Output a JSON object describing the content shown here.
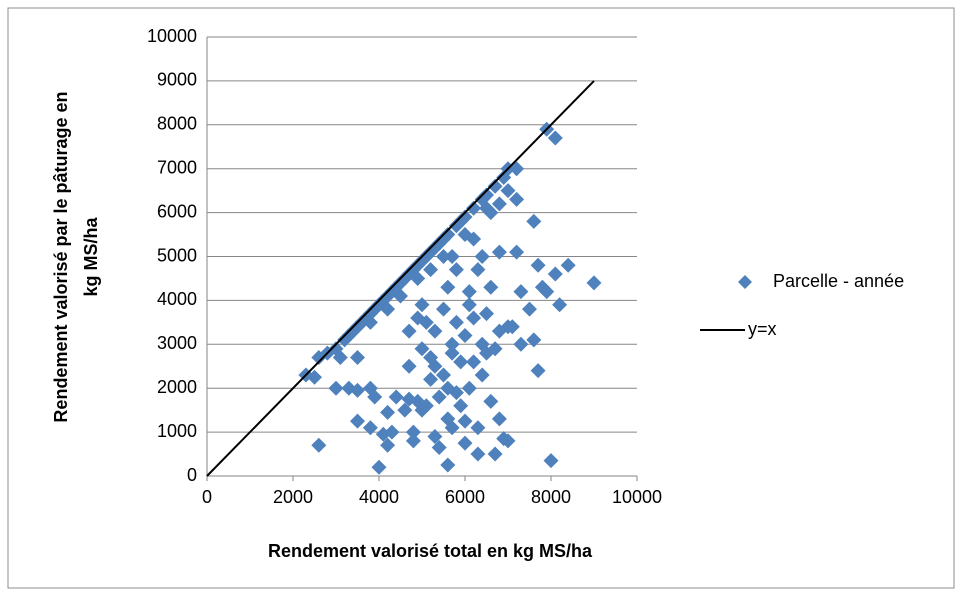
{
  "chart_data": {
    "type": "scatter",
    "xlabel": "Rendement valorisé total en kg MS/ha",
    "ylabel": [
      "Rendement valorisé par le pâturage en",
      "kg MS/ha"
    ],
    "xlim": [
      0,
      10000
    ],
    "xticks": [
      0,
      2000,
      4000,
      6000,
      8000,
      10000
    ],
    "ylim": [
      0,
      10000
    ],
    "yticks": [
      0,
      1000,
      2000,
      3000,
      4000,
      5000,
      6000,
      7000,
      8000,
      9000,
      10000
    ],
    "grid": true,
    "legend": "right",
    "series": [
      {
        "name": "Parcelle - année",
        "color": "#4f81bd",
        "marker": "diamond",
        "x": [
          2300,
          2500,
          2600,
          2800,
          3000,
          3100,
          3200,
          3300,
          3400,
          3500,
          3600,
          3700,
          3800,
          3900,
          4000,
          4100,
          4200,
          4300,
          4400,
          4500,
          4600,
          4700,
          4800,
          4900,
          5000,
          5100,
          5200,
          5300,
          5400,
          5500,
          5600,
          5800,
          5900,
          6000,
          6200,
          6400,
          6500,
          6700,
          6900,
          7000,
          7200,
          7900,
          8100,
          3500,
          3800,
          4200,
          4500,
          4900,
          5200,
          5500,
          5700,
          6000,
          6200,
          6600,
          6800,
          7000,
          7200,
          6500,
          2600,
          3000,
          3300,
          3500,
          3500,
          3800,
          3900,
          3800,
          4000,
          4100,
          4200,
          4200,
          4300,
          4400,
          4600,
          4700,
          4700,
          4800,
          4800,
          4900,
          5000,
          5100,
          5000,
          5200,
          5200,
          5300,
          5300,
          5400,
          5400,
          5500,
          5600,
          5600,
          5700,
          5800,
          5700,
          5800,
          5900,
          6000,
          6000,
          6000,
          6100,
          6200,
          6200,
          6300,
          6300,
          6400,
          6400,
          6500,
          6500,
          6600,
          6700,
          6700,
          6800,
          6800,
          6900,
          7000,
          7000,
          7100,
          7200,
          7300,
          7300,
          7500,
          7600,
          7600,
          7700,
          7700,
          7800,
          7900,
          8000,
          8100,
          8200,
          8400,
          9000,
          5100,
          5300,
          5500,
          5600,
          5700,
          5800,
          6100,
          6300,
          6400,
          6800,
          4700,
          4900,
          5000,
          5600,
          5900,
          6100,
          6600
        ],
        "values": [
          2300,
          2250,
          2700,
          2800,
          2900,
          2700,
          3100,
          3200,
          3300,
          3400,
          3500,
          3600,
          3700,
          3800,
          3900,
          4000,
          4100,
          4200,
          4300,
          4400,
          4500,
          4600,
          4700,
          4800,
          4900,
          5000,
          5100,
          5200,
          5300,
          5400,
          5500,
          5700,
          5800,
          5900,
          6100,
          6300,
          6400,
          6600,
          6800,
          7000,
          7000,
          7900,
          7700,
          2700,
          3500,
          3800,
          4100,
          4500,
          4700,
          5000,
          5000,
          5500,
          5400,
          6000,
          6200,
          6500,
          6300,
          6100,
          700,
          2000,
          2000,
          1250,
          1950,
          2000,
          1800,
          1100,
          200,
          950,
          1450,
          700,
          1000,
          1800,
          1500,
          1750,
          2500,
          1000,
          800,
          1700,
          1500,
          1600,
          2900,
          2700,
          2200,
          2500,
          900,
          650,
          1800,
          2300,
          250,
          1300,
          1100,
          1900,
          3000,
          3500,
          2600,
          3200,
          1250,
          750,
          2000,
          3600,
          2600,
          500,
          1100,
          2300,
          3000,
          3700,
          2800,
          1700,
          500,
          2900,
          3300,
          1300,
          850,
          3400,
          800,
          3400,
          5100,
          4200,
          3000,
          3800,
          3100,
          5800,
          2400,
          4800,
          4300,
          4200,
          350,
          4600,
          3900,
          4800,
          4400,
          3500,
          3300,
          3800,
          4300,
          2800,
          4700,
          4200,
          4700,
          5000,
          5100,
          3300,
          3600,
          3900,
          2000,
          1600,
          3900,
          4300
        ]
      },
      {
        "name": "y=x",
        "color": "#000000",
        "marker": "line",
        "x": [
          0,
          9000
        ],
        "values": [
          0,
          9000
        ]
      }
    ]
  }
}
